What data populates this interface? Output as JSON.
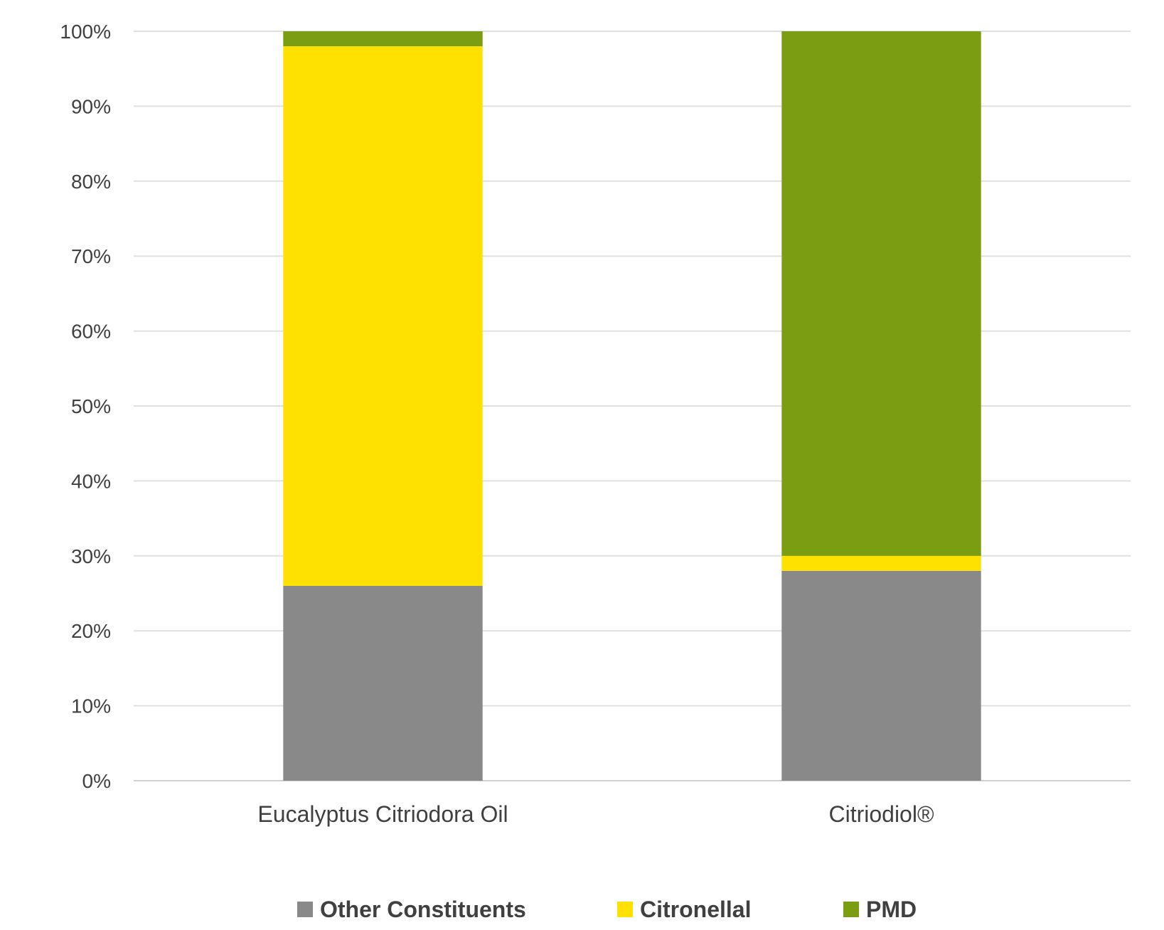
{
  "chart_data": {
    "type": "bar",
    "stacked": true,
    "categories": [
      "Eucalyptus Citriodora Oil",
      "Citriodiol®"
    ],
    "series": [
      {
        "name": "Other Constituents",
        "color": "#898989",
        "values": [
          26,
          28
        ]
      },
      {
        "name": "Citronellal",
        "color": "#FFE100",
        "values": [
          72,
          2
        ]
      },
      {
        "name": "PMD",
        "color": "#7A9D12",
        "values": [
          2,
          70
        ]
      }
    ],
    "yticks": [
      "0%",
      "10%",
      "20%",
      "30%",
      "40%",
      "50%",
      "60%",
      "70%",
      "80%",
      "90%",
      "100%"
    ],
    "ylim": [
      0,
      100
    ],
    "grid": true,
    "legend": "bottom",
    "title": "",
    "xlabel": "",
    "ylabel": ""
  }
}
